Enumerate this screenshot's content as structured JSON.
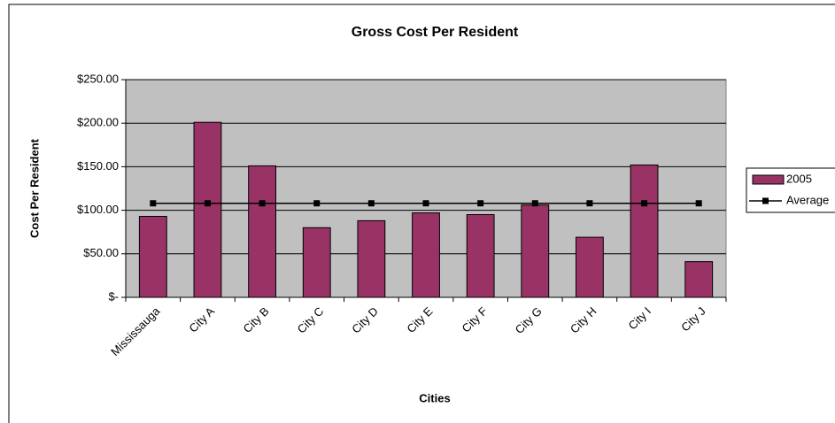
{
  "chart_data": {
    "type": "bar",
    "title": "Gross Cost Per Resident",
    "x_label": "Cities",
    "y_label": "Cost Per Resident",
    "categories": [
      "Mississauga",
      "City A",
      "City B",
      "City C",
      "City D",
      "City E",
      "City F",
      "City G",
      "City H",
      "City I",
      "City J"
    ],
    "series": [
      {
        "name": "2005",
        "type": "bar",
        "color": "#993366",
        "values": [
          93,
          201,
          151,
          80,
          88,
          97,
          95,
          106,
          69,
          152,
          41
        ]
      },
      {
        "name": "Average",
        "type": "line",
        "color": "#000000",
        "values": [
          108,
          108,
          108,
          108,
          108,
          108,
          108,
          108,
          108,
          108,
          108
        ]
      }
    ],
    "ylim": [
      0,
      250
    ],
    "yticks": [
      {
        "value": 0,
        "label": "$-"
      },
      {
        "value": 50,
        "label": "$50.00"
      },
      {
        "value": 100,
        "label": "$100.00"
      },
      {
        "value": 150,
        "label": "$150.00"
      },
      {
        "value": 200,
        "label": "$200.00"
      },
      {
        "value": 250,
        "label": "$250.00"
      }
    ],
    "grid": true,
    "plot_background": "#c0c0c0",
    "legend": "right"
  }
}
